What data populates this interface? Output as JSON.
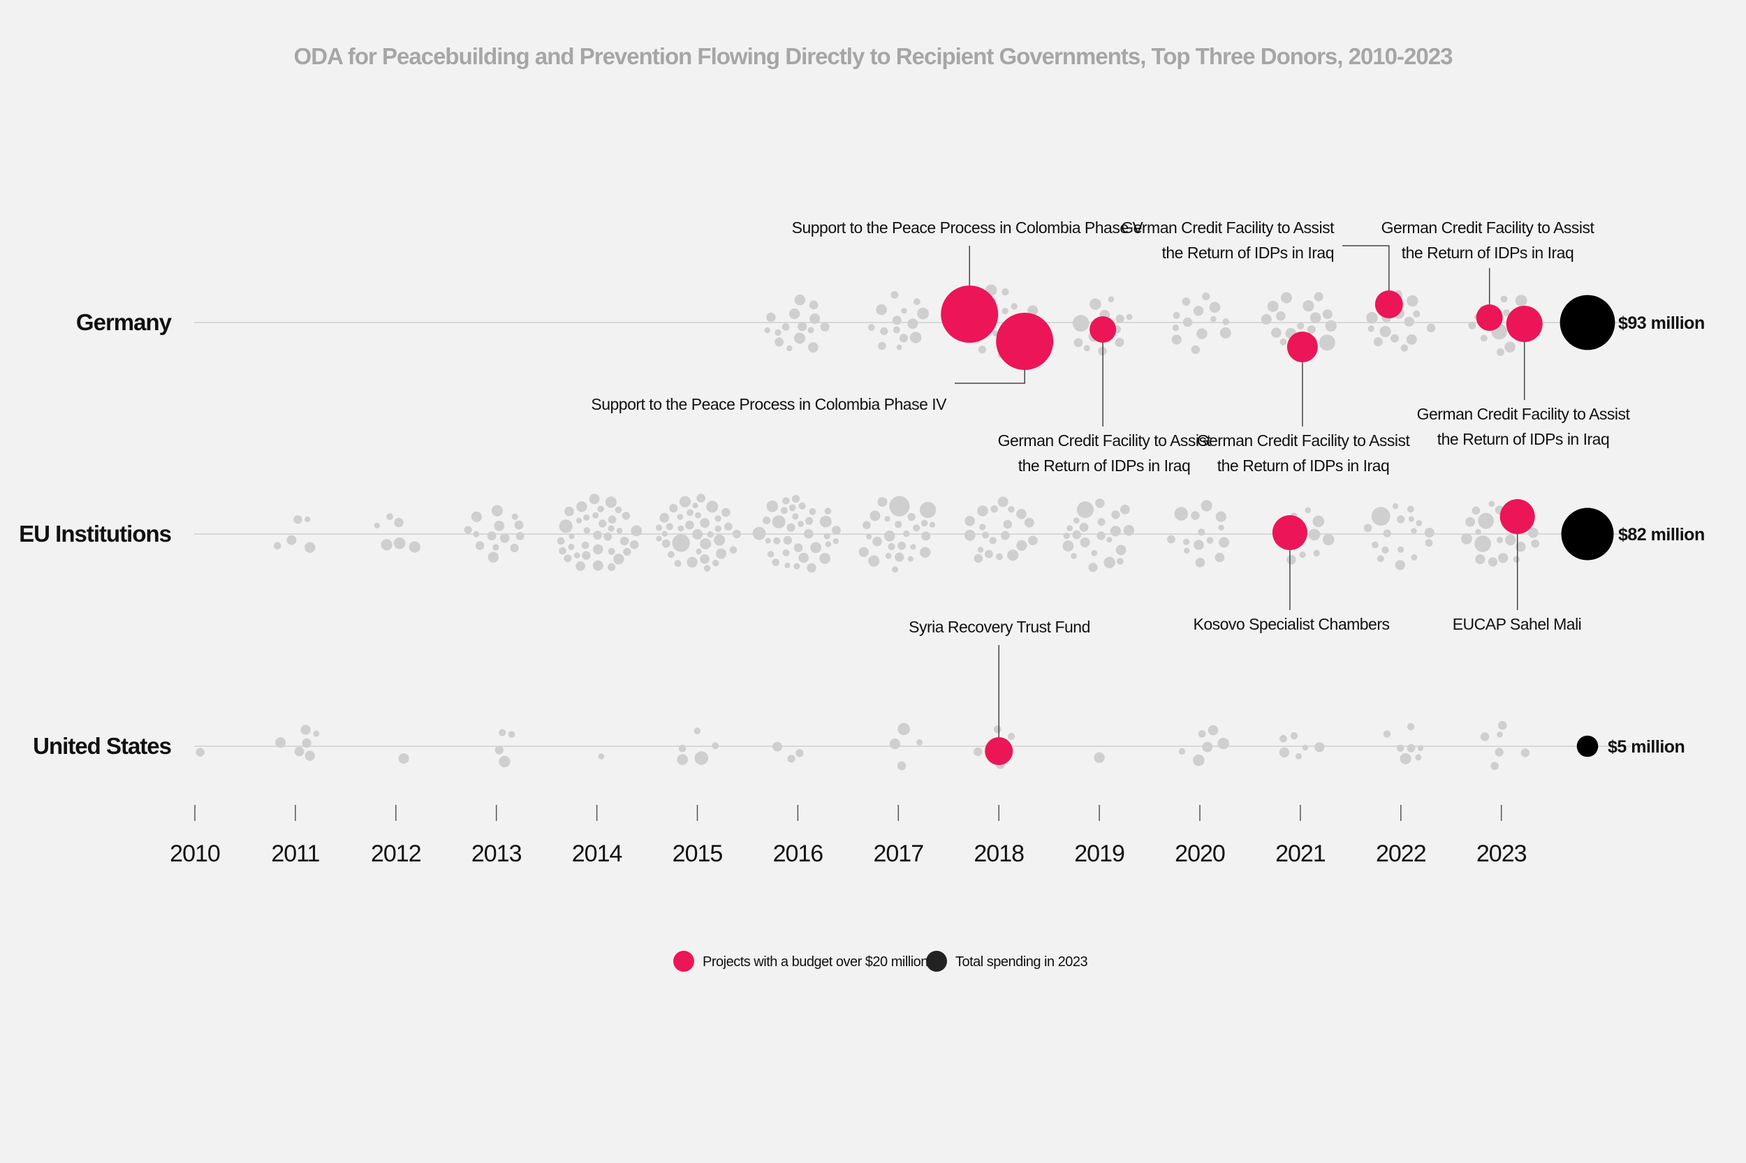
{
  "chart_data": {
    "type": "scatter",
    "title": "ODA for Peacebuilding and Prevention Flowing Directly to Recipient Governments, Top Three Donors, 2010-2023",
    "x_ticks": [
      "2010",
      "2011",
      "2012",
      "2013",
      "2014",
      "2015",
      "2016",
      "2017",
      "2018",
      "2019",
      "2020",
      "2021",
      "2022",
      "2023"
    ],
    "colors": {
      "project": "#cfcfcf",
      "large_project": "#ec1558",
      "total": "#000000",
      "line": "#d8d8d8",
      "connector": "#444444"
    },
    "donors": [
      {
        "name": "Germany",
        "total_2023": "$93 million",
        "total_value": 93,
        "year_project_counts": {
          "2016": 15,
          "2017": 14,
          "2018": 20,
          "2019": 13,
          "2020": 13,
          "2021": 17,
          "2022": 15,
          "2023": 14
        },
        "highlights": [
          {
            "year": 2018,
            "label": [
              "Support to the Peace Process in Colombia Phase V"
            ],
            "side": "above",
            "size": 3.2
          },
          {
            "year": 2018,
            "label": [
              "Support to the Peace Process in Colombia Phase IV"
            ],
            "side": "below",
            "size": 3.2
          },
          {
            "year": 2019,
            "label": [
              "German Credit Facility to Assist",
              "the Return of IDPs in Iraq"
            ],
            "side": "below",
            "size": 1.3
          },
          {
            "year": 2021,
            "label": [
              "German Credit Facility to Assist",
              "the Return of IDPs in Iraq"
            ],
            "side": "below",
            "size": 1.5
          },
          {
            "year": 2022,
            "label": [
              "German Credit Facility to Assist",
              "the Return of IDPs in Iraq"
            ],
            "side": "above",
            "size": 1.4
          },
          {
            "year": 2023,
            "label": [
              "German Credit Facility to Assist",
              "the Return of IDPs in Iraq"
            ],
            "side": "above",
            "size": 1.4
          },
          {
            "year": 2023,
            "label": [
              "German Credit Facility to Assist",
              "the Return of IDPs in Iraq"
            ],
            "side": "below",
            "size": 1.8
          }
        ]
      },
      {
        "name": "EU Institutions",
        "total_2023": "$82 million",
        "total_value": 82,
        "year_project_counts": {
          "2011": 5,
          "2012": 6,
          "2013": 14,
          "2014": 36,
          "2015": 36,
          "2016": 34,
          "2017": 26,
          "2018": 20,
          "2019": 22,
          "2020": 14,
          "2021": 11,
          "2022": 17,
          "2023": 20
        },
        "highlights": [
          {
            "year": 2021,
            "label": [
              "Kosovo Specialist Chambers"
            ],
            "side": "below",
            "size": 1.8
          },
          {
            "year": 2023,
            "label": [
              "EUCAP Sahel Mali"
            ],
            "side": "below",
            "size": 1.8
          }
        ]
      },
      {
        "name": "United States",
        "total_2023": "$5 million",
        "total_value": 5,
        "year_project_counts": {
          "2010": 1,
          "2011": 6,
          "2012": 1,
          "2013": 4,
          "2014": 1,
          "2015": 5,
          "2016": 3,
          "2017": 4,
          "2018": 4,
          "2019": 1,
          "2020": 6,
          "2021": 6,
          "2022": 7,
          "2023": 6
        },
        "highlights": [
          {
            "year": 2018,
            "label": [
              "Syria Recovery Trust Fund"
            ],
            "side": "above",
            "size": 1.5
          }
        ]
      }
    ],
    "legend": [
      {
        "key": "large_project",
        "label": "Projects with a budget over $20 million"
      },
      {
        "key": "total",
        "label": "Total spending in 2023"
      }
    ]
  }
}
